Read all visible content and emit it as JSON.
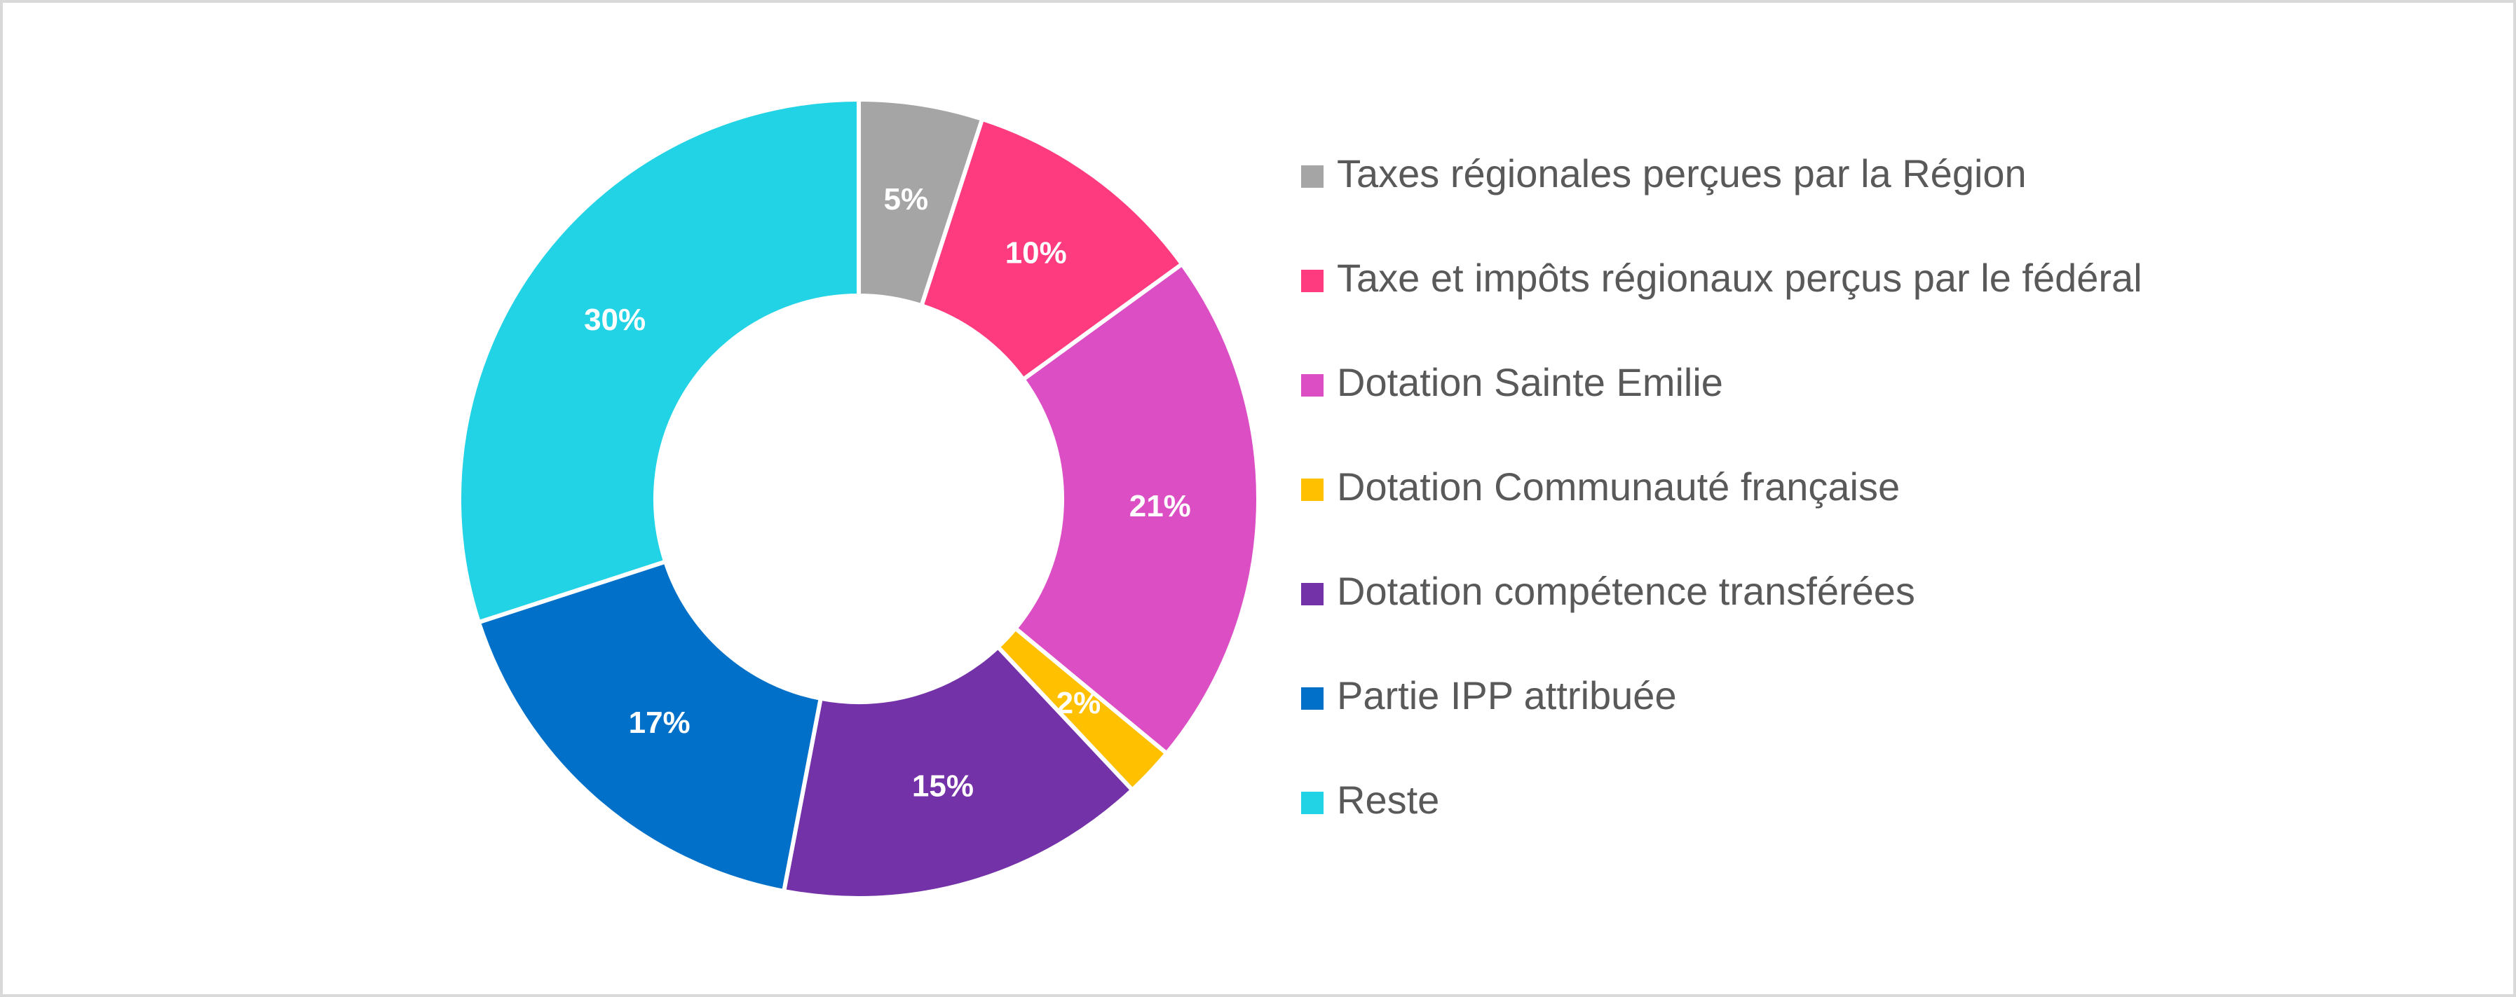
{
  "chart_data": {
    "type": "donut",
    "categories": [
      "Taxes régionales perçues par la Région",
      "Taxe et impôts régionaux perçus par le fédéral",
      "Dotation Sainte Emilie",
      "Dotation Communauté française",
      "Dotation compétence transférées",
      "Partie IPP attribuée",
      "Reste"
    ],
    "values": [
      5,
      10,
      21,
      2,
      15,
      17,
      30
    ],
    "value_labels": [
      "5%",
      "10%",
      "21%",
      "2%",
      "15%",
      "17%",
      "30%"
    ],
    "colors": [
      "#a5a5a5",
      "#ff3b7f",
      "#dc4fc4",
      "#ffc000",
      "#7432a8",
      "#0070c8",
      "#22d3e6"
    ],
    "legend": "right"
  }
}
